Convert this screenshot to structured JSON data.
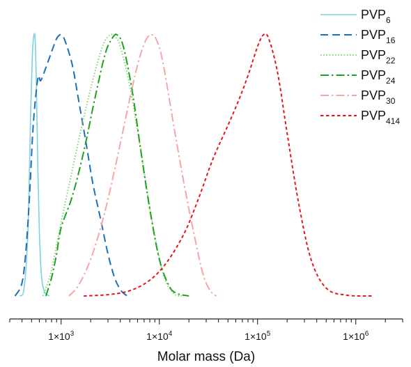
{
  "chart_data": {
    "type": "line",
    "title": "",
    "xlabel": "Molar mass (Da)",
    "ylabel": "",
    "xscale": "log",
    "xlim": [
      300,
      3000000
    ],
    "ylim": [
      0,
      1
    ],
    "grid": false,
    "legend_position": "top-right",
    "x_ticks": [
      {
        "value": 1000,
        "mantissa": "1×10",
        "exponent": "3"
      },
      {
        "value": 10000,
        "mantissa": "1×10",
        "exponent": "4"
      },
      {
        "value": 100000,
        "mantissa": "1×10",
        "exponent": "5"
      },
      {
        "value": 1000000,
        "mantissa": "1×10",
        "exponent": "6"
      }
    ],
    "series": [
      {
        "name_base": "PVP",
        "name_sub": "6",
        "color": "#7fd0e0",
        "dash": "solid",
        "x": [
          380,
          420,
          460,
          490,
          510,
          530,
          545,
          560,
          580,
          600,
          630,
          670,
          720,
          760
        ],
        "y": [
          0.0,
          0.03,
          0.25,
          0.7,
          0.92,
          0.995,
          0.97,
          0.8,
          0.48,
          0.25,
          0.08,
          0.02,
          0.005,
          0.0
        ]
      },
      {
        "name_base": "PVP",
        "name_sub": "16",
        "color": "#1f6fb4",
        "dash": "long",
        "x": [
          340,
          400,
          440,
          480,
          520,
          580,
          620,
          700,
          800,
          900,
          1000,
          1100,
          1300,
          1500,
          1800,
          2100,
          2500,
          3000,
          3500,
          4000,
          4500,
          5000
        ],
        "y": [
          0.0,
          0.05,
          0.18,
          0.4,
          0.65,
          0.83,
          0.82,
          0.87,
          0.93,
          0.98,
          0.995,
          0.97,
          0.88,
          0.75,
          0.58,
          0.43,
          0.3,
          0.16,
          0.07,
          0.025,
          0.005,
          0.0
        ]
      },
      {
        "name_base": "PVP",
        "name_sub": "22",
        "color": "#8bd37a",
        "dash": "dotted",
        "x": [
          650,
          700,
          800,
          1000,
          1300,
          1700,
          2200,
          2700,
          3200,
          3600,
          4000,
          5000,
          6500,
          8500,
          11000,
          14000,
          17000
        ],
        "y": [
          0.0,
          0.03,
          0.1,
          0.28,
          0.48,
          0.68,
          0.85,
          0.96,
          0.995,
          0.985,
          0.95,
          0.8,
          0.55,
          0.28,
          0.08,
          0.01,
          0.0
        ]
      },
      {
        "name_base": "PVP",
        "name_sub": "24",
        "color": "#1fa020",
        "dash": "dashdot",
        "x": [
          700,
          800,
          900,
          1000,
          1300,
          1700,
          2200,
          2800,
          3300,
          3700,
          4300,
          5300,
          6500,
          8000,
          10000,
          12500,
          15000,
          20000
        ],
        "y": [
          0.0,
          0.07,
          0.16,
          0.26,
          0.38,
          0.55,
          0.75,
          0.92,
          0.98,
          0.995,
          0.95,
          0.78,
          0.55,
          0.33,
          0.14,
          0.04,
          0.01,
          0.0
        ]
      },
      {
        "name_base": "PVP",
        "name_sub": "30",
        "color": "#f4a6a6",
        "dash": "dashdot",
        "x": [
          1200,
          1500,
          2000,
          2700,
          3600,
          4800,
          6000,
          7200,
          8300,
          9500,
          11000,
          14000,
          18000,
          23000,
          28000,
          33000,
          38000
        ],
        "y": [
          0.0,
          0.04,
          0.14,
          0.3,
          0.5,
          0.72,
          0.88,
          0.97,
          0.995,
          0.97,
          0.88,
          0.65,
          0.42,
          0.22,
          0.08,
          0.02,
          0.0
        ]
      },
      {
        "name_base": "PVP",
        "name_sub": "414",
        "color": "#e8141c",
        "dash": "short",
        "x": [
          1700,
          3000,
          5000,
          8000,
          12000,
          18000,
          25000,
          35000,
          50000,
          65000,
          80000,
          100000,
          115000,
          130000,
          160000,
          200000,
          260000,
          350000,
          500000,
          800000,
          1500000
        ],
        "y": [
          0.0,
          0.005,
          0.02,
          0.06,
          0.13,
          0.24,
          0.37,
          0.52,
          0.65,
          0.75,
          0.84,
          0.95,
          0.995,
          0.98,
          0.85,
          0.62,
          0.36,
          0.14,
          0.03,
          0.003,
          0.0
        ]
      }
    ]
  }
}
